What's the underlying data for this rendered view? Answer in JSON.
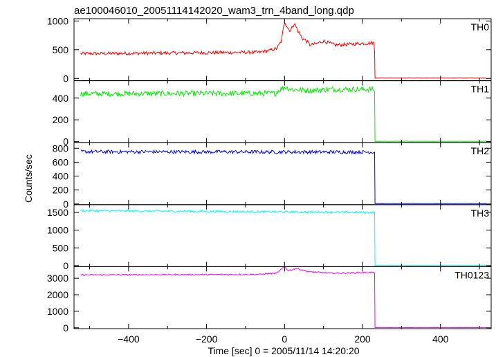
{
  "chart_data": {
    "type": "line",
    "title": "ae100046010_20051114142020_wam3_trn_4band_long.qdp",
    "xlabel": "Time [sec] 0 = 2005/11/14 14:20:20",
    "ylabel": "Counts/sec",
    "xlim": [
      -540,
      530
    ],
    "xticks": [
      -400,
      -200,
      0,
      200,
      400
    ],
    "drop_time": 232,
    "x_start": -523,
    "x_end": 518,
    "panels": [
      {
        "name": "TH0",
        "color": "#ff0000",
        "ylim": [
          -40,
          1040
        ],
        "yticks": [
          0,
          500,
          1000
        ],
        "baseline_start": 430,
        "baseline_end": 470,
        "noise": 30,
        "after_level": 5,
        "burst_points": [
          [
            -60,
            465
          ],
          [
            -40,
            480
          ],
          [
            -20,
            520
          ],
          [
            -8,
            650
          ],
          [
            0,
            1000
          ],
          [
            8,
            880
          ],
          [
            15,
            830
          ],
          [
            25,
            960
          ],
          [
            35,
            820
          ],
          [
            45,
            700
          ],
          [
            55,
            660
          ],
          [
            65,
            580
          ],
          [
            80,
            600
          ],
          [
            100,
            650
          ],
          [
            130,
            580
          ],
          [
            160,
            590
          ],
          [
            200,
            610
          ],
          [
            230,
            620
          ]
        ]
      },
      {
        "name": "TH1",
        "color": "#00ee00",
        "ylim": [
          -10,
          560
        ],
        "yticks": [
          0,
          200,
          400
        ],
        "baseline_start": 440,
        "baseline_end": 445,
        "noise": 25,
        "after_level": 3,
        "burst_points": [
          [
            -20,
            460
          ],
          [
            0,
            500
          ],
          [
            20,
            480
          ],
          [
            60,
            470
          ],
          [
            120,
            480
          ],
          [
            230,
            480
          ]
        ]
      },
      {
        "name": "TH2",
        "color": "#0000ff",
        "ylim": [
          -10,
          880
        ],
        "yticks": [
          0,
          200,
          400,
          600,
          800
        ],
        "baseline_start": 750,
        "baseline_end": 745,
        "noise": 25,
        "after_level": 5,
        "burst_points": []
      },
      {
        "name": "TH3",
        "color": "#00ffff",
        "ylim": [
          -30,
          1720
        ],
        "yticks": [
          0,
          500,
          1000,
          1500
        ],
        "baseline_start": 1550,
        "baseline_end": 1500,
        "noise": 30,
        "after_level": 5,
        "burst_points": []
      },
      {
        "name": "TH0123",
        "color": "#ff00ff",
        "ylim": [
          -50,
          3700
        ],
        "yticks": [
          0,
          1000,
          2000,
          3000
        ],
        "baseline_start": 3200,
        "baseline_end": 3250,
        "noise": 40,
        "after_level": 15,
        "burst_points": [
          [
            -60,
            3250
          ],
          [
            -20,
            3300
          ],
          [
            0,
            3700
          ],
          [
            10,
            3450
          ],
          [
            30,
            3600
          ],
          [
            60,
            3400
          ],
          [
            120,
            3300
          ],
          [
            230,
            3350
          ]
        ]
      }
    ]
  }
}
